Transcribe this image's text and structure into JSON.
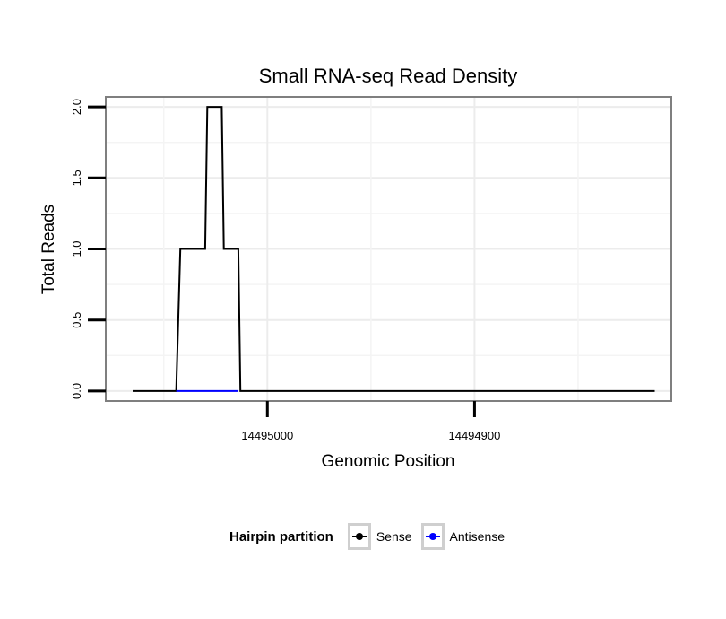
{
  "chart_data": {
    "type": "line",
    "title": "Small RNA-seq Read Density",
    "xlabel": "Genomic Position",
    "ylabel": "Total Reads",
    "x_reversed": true,
    "xlim": [
      14495078,
      14494805
    ],
    "ylim": [
      -0.07,
      2.07
    ],
    "x_ticks": [
      14495000,
      14494900
    ],
    "x_tick_labels": [
      "14495000",
      "14494900"
    ],
    "y_ticks": [
      0,
      0.5,
      1,
      1.5,
      2
    ],
    "y_tick_labels": [
      "0.0",
      "0.5",
      "1.0",
      "1.5",
      "2.0"
    ],
    "grid": true,
    "legend_title": "Hairpin partition",
    "legend_position": "bottom",
    "series": [
      {
        "name": "Sense",
        "color": "#000000",
        "x": [
          14495065,
          14495044,
          14495042,
          14495030,
          14495029,
          14495022,
          14495021,
          14495014,
          14495013,
          14494813
        ],
        "y": [
          0,
          0,
          1,
          1,
          2,
          2,
          1,
          1,
          0,
          0
        ]
      },
      {
        "name": "Antisense",
        "color": "#0000ff",
        "x": [
          14495044,
          14495014
        ],
        "y": [
          0,
          0
        ]
      }
    ]
  }
}
